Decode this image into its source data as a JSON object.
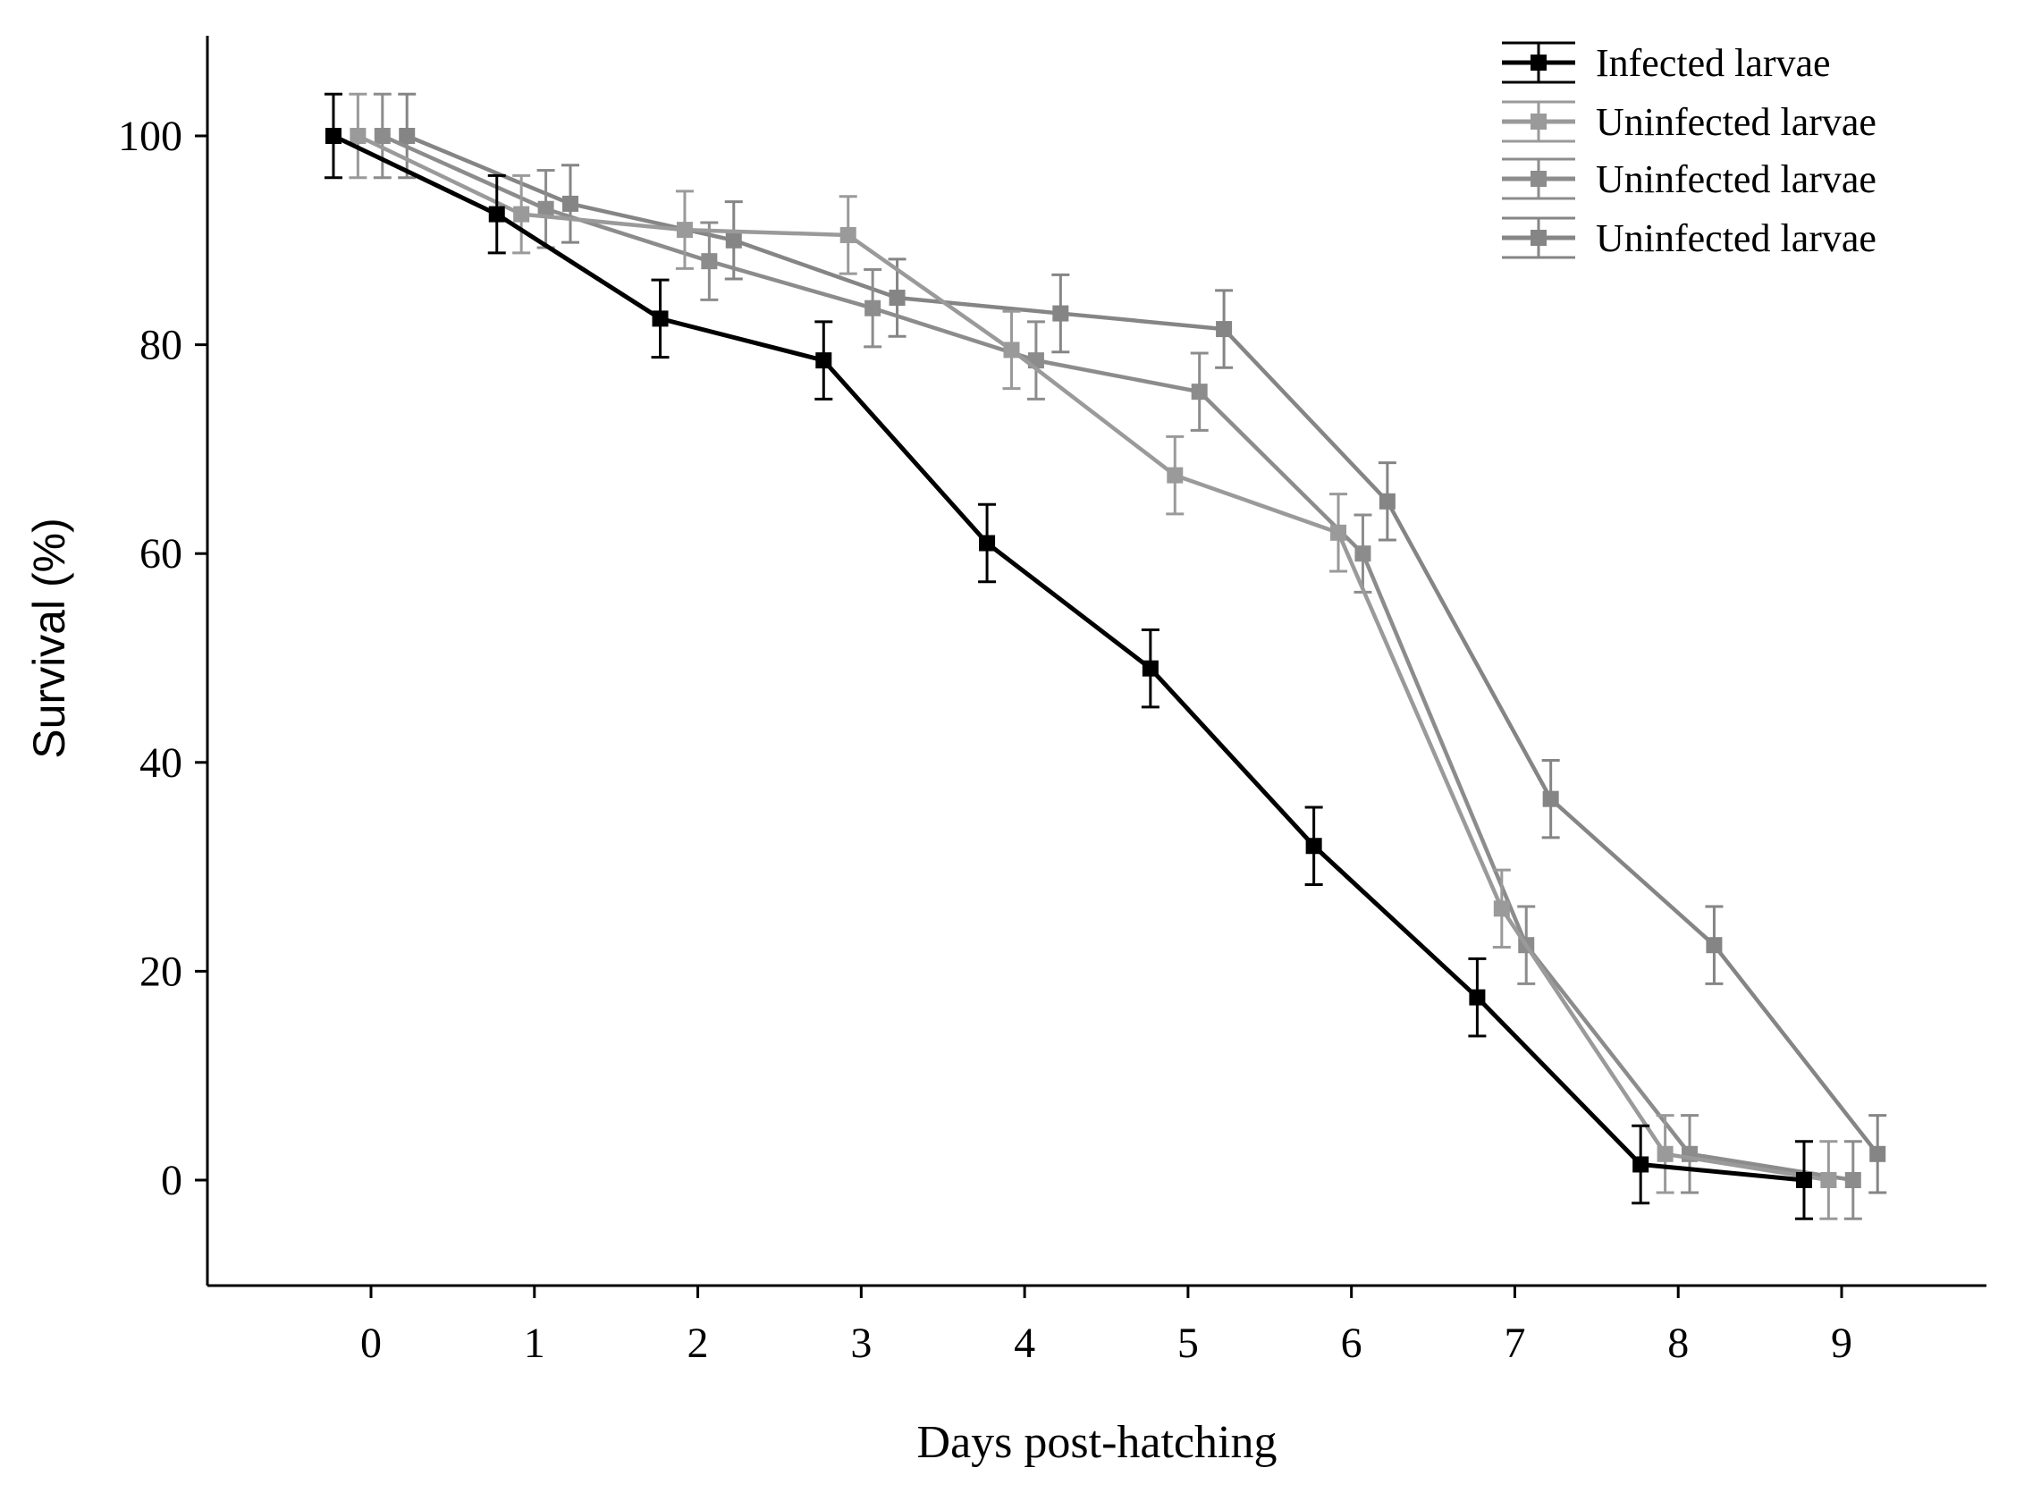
{
  "chart_data": {
    "type": "line",
    "title": "",
    "xlabel": "Days post-hatching",
    "ylabel": "Survival (%)",
    "xlim": [
      -1,
      10
    ],
    "ylim": [
      -10,
      110
    ],
    "x_ticks": [
      0,
      1,
      2,
      3,
      4,
      5,
      6,
      7,
      8,
      9
    ],
    "x_tick_labels": [
      "0",
      "1",
      "2",
      "3",
      "4",
      "5",
      "6",
      "7",
      "8",
      "9"
    ],
    "y_ticks": [
      0,
      20,
      40,
      60,
      80,
      100
    ],
    "y_tick_labels": [
      "0",
      "20",
      "40",
      "60",
      "80",
      "100"
    ],
    "grid": false,
    "legend_position": "top-right",
    "series": [
      {
        "name": "Infected larvae",
        "color": "#000000",
        "x": [
          -0.23,
          0.77,
          1.77,
          2.77,
          3.77,
          4.77,
          5.77,
          6.77,
          7.77,
          8.77
        ],
        "values": [
          100,
          92.5,
          82.5,
          78.5,
          61,
          49,
          32,
          17.5,
          1.5,
          0
        ],
        "error": [
          4,
          3.7,
          3.7,
          3.7,
          3.7,
          3.7,
          3.7,
          3.7,
          3.7,
          3.7
        ]
      },
      {
        "name": "Uninfected larvae",
        "color": "#9a9a9a",
        "x": [
          -0.08,
          0.92,
          1.92,
          2.92,
          3.92,
          4.92,
          5.92,
          6.92,
          7.92,
          8.92
        ],
        "values": [
          100,
          92.5,
          91,
          90.5,
          79.5,
          67.5,
          62,
          26,
          2.5,
          0
        ],
        "error": [
          4,
          3.7,
          3.7,
          3.7,
          3.7,
          3.7,
          3.7,
          3.7,
          3.7,
          3.7
        ]
      },
      {
        "name": "Uninfected larvae",
        "color": "#8c8c8c",
        "x": [
          0.07,
          1.07,
          2.07,
          3.07,
          4.07,
          5.07,
          6.07,
          7.07,
          8.07,
          9.07
        ],
        "values": [
          100,
          93,
          88,
          83.5,
          78.5,
          75.5,
          60,
          22.5,
          2.5,
          0
        ],
        "error": [
          4,
          3.7,
          3.7,
          3.7,
          3.7,
          3.7,
          3.7,
          3.7,
          3.7,
          3.7
        ]
      },
      {
        "name": "Uninfected larvae",
        "color": "#858585",
        "x": [
          0.22,
          1.22,
          2.22,
          3.22,
          4.22,
          5.22,
          6.22,
          7.22,
          8.22,
          9.22
        ],
        "values": [
          100,
          93.5,
          90,
          84.5,
          83,
          81.5,
          65,
          36.5,
          22.5,
          2.5
        ],
        "error": [
          4,
          3.7,
          3.7,
          3.7,
          3.7,
          3.7,
          3.7,
          3.7,
          3.7,
          3.7
        ]
      }
    ]
  }
}
